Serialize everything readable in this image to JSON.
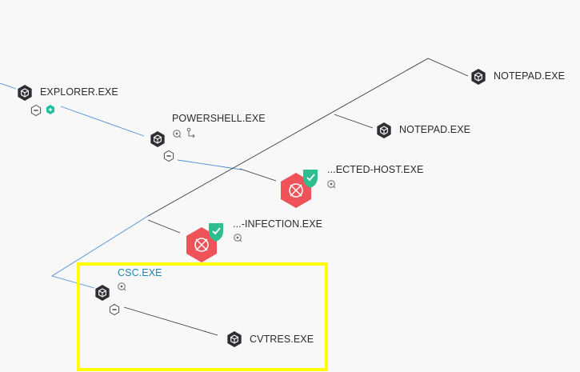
{
  "graph": {
    "nodes": [
      {
        "id": "explorer",
        "label": "EXPLORER.EXE",
        "type": "process",
        "state": "normal"
      },
      {
        "id": "powershell",
        "label": "POWERSHELL.EXE",
        "type": "process",
        "state": "normal"
      },
      {
        "id": "notepad1",
        "label": "NOTEPAD.EXE",
        "type": "process",
        "state": "normal"
      },
      {
        "id": "notepad2",
        "label": "NOTEPAD.EXE",
        "type": "process",
        "state": "normal"
      },
      {
        "id": "infected_host",
        "label": "...ECTED-HOST.EXE",
        "type": "process",
        "state": "alert",
        "badge": "shield-check"
      },
      {
        "id": "infection",
        "label": "...-INFECTION.EXE",
        "type": "process",
        "state": "alert",
        "badge": "shield-check"
      },
      {
        "id": "csc",
        "label": "CSC.EXE",
        "type": "process",
        "state": "selected"
      },
      {
        "id": "cvtres",
        "label": "CVTRES.EXE",
        "type": "process",
        "state": "normal"
      }
    ]
  },
  "colors": {
    "background": "#f8f8f9",
    "node": "#2e2e33",
    "alert": "#f0525a",
    "badge": "#2ebd8f",
    "selection": "#ffff00",
    "selected_text": "#1f86b0",
    "edge_blue": "#4a8fd8",
    "edge_dark": "#3a3a3e"
  },
  "icons": {
    "process": "hexagon-cube-icon",
    "collapse": "collapse-minus-icon",
    "expand": "expand-plus-icon",
    "network": "network-icon",
    "registry": "registry-icon",
    "alert": "alert-crosshair-icon",
    "badge": "shield-check-icon"
  }
}
